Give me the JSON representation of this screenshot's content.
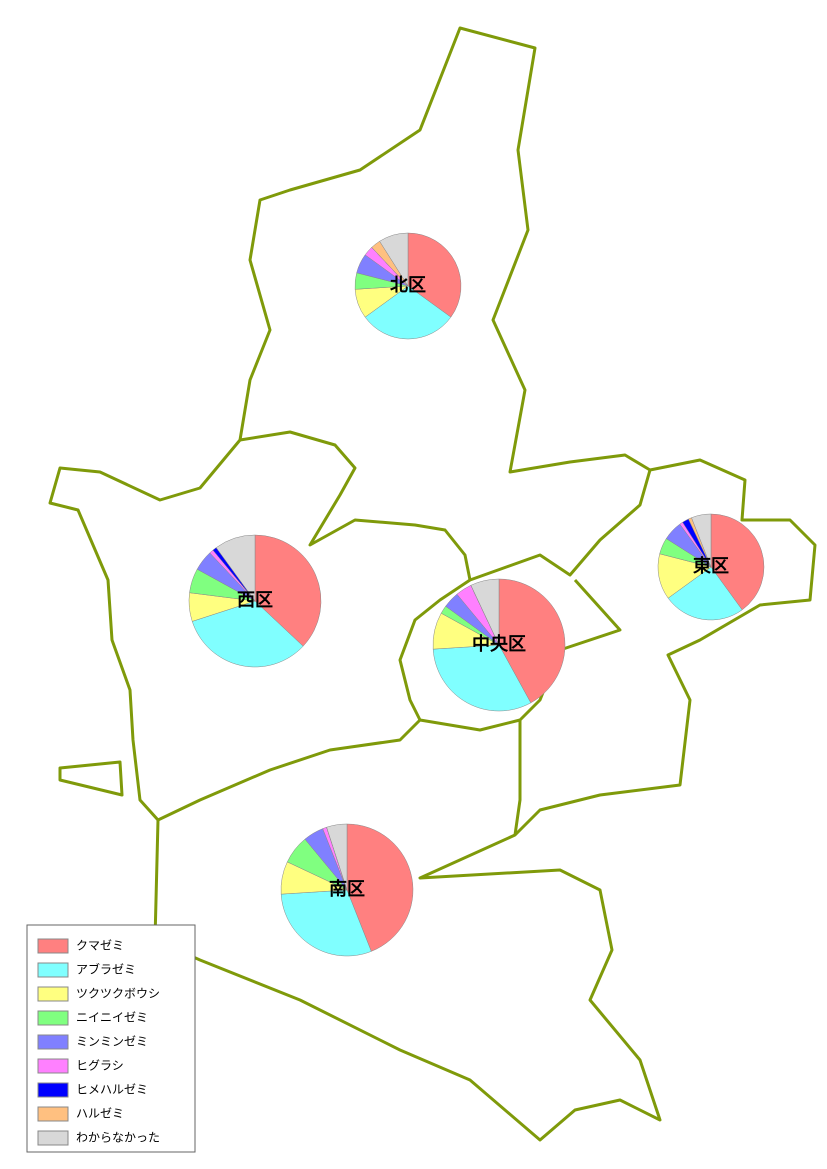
{
  "map": {
    "species": [
      "クマゼミ",
      "アブラゼミ",
      "ツクツクボウシ",
      "ニイニイゼミ",
      "ミンミンゼミ",
      "ヒグラシ",
      "ヒメハルゼミ",
      "ハルゼミ",
      "わからなかった"
    ],
    "colors": [
      "#ff8080",
      "#80ffff",
      "#ffff80",
      "#80ff80",
      "#8080ff",
      "#ff80ff",
      "#0000ff",
      "#ffc080",
      "#d8d8d8"
    ],
    "wards": [
      {
        "label": "北区",
        "values": [
          35,
          30,
          9,
          5,
          6,
          3,
          0,
          3,
          9
        ]
      },
      {
        "label": "西区",
        "values": [
          37,
          33,
          7,
          6,
          5,
          1,
          1,
          0,
          10
        ]
      },
      {
        "label": "中央区",
        "values": [
          42,
          32,
          9,
          2,
          4,
          4,
          0,
          0,
          7
        ]
      },
      {
        "label": "東区",
        "values": [
          40,
          25,
          14,
          5,
          6,
          1,
          2,
          1,
          6
        ]
      },
      {
        "label": "南区",
        "values": [
          44,
          30,
          8,
          7,
          5,
          1,
          0,
          0,
          5
        ]
      }
    ]
  }
}
